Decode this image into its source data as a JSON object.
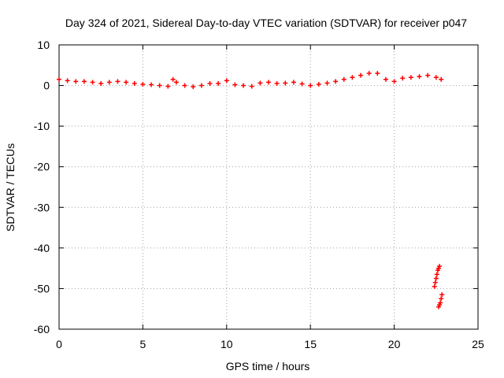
{
  "chart_data": {
    "type": "scatter",
    "title": "Day 324 of 2021, Sidereal Day-to-day VTEC variation (SDTVAR) for receiver p047",
    "xlabel": "GPS time / hours",
    "ylabel": "SDTVAR / TECUs",
    "xlim": [
      0,
      25
    ],
    "ylim": [
      -60,
      10
    ],
    "xticks": [
      "0",
      "5",
      "10",
      "15",
      "20",
      "25"
    ],
    "yticks": [
      "10",
      "0",
      "-10",
      "-20",
      "-30",
      "-40",
      "-50",
      "-60"
    ],
    "grid": true,
    "marker_color": "#ff0000",
    "series": [
      {
        "marker": "plus",
        "x": [
          0.0,
          0.5,
          1.0,
          1.5,
          2.0,
          2.5,
          3.0,
          3.5,
          4.0,
          4.5,
          5.0,
          5.5,
          6.0,
          6.5,
          6.8,
          7.0,
          7.5,
          8.0,
          8.5,
          9.0,
          9.5,
          10.0,
          10.5,
          11.0,
          11.5,
          12.0,
          12.5,
          13.0,
          13.5,
          14.0,
          14.5,
          15.0,
          15.5,
          16.0,
          16.5,
          17.0,
          17.5,
          18.0,
          18.5,
          19.0,
          19.5,
          20.0,
          20.5,
          21.0,
          21.5,
          22.0,
          22.5,
          22.8
        ],
        "y": [
          1.5,
          1.2,
          1.0,
          1.0,
          0.8,
          0.5,
          0.8,
          1.0,
          0.8,
          0.5,
          0.3,
          0.2,
          0.0,
          -0.2,
          1.5,
          0.8,
          0.0,
          -0.3,
          0.0,
          0.5,
          0.5,
          1.2,
          0.2,
          0.0,
          -0.2,
          0.6,
          0.8,
          0.5,
          0.6,
          0.8,
          0.4,
          0.0,
          0.3,
          0.6,
          1.0,
          1.5,
          2.0,
          2.5,
          3.0,
          3.0,
          1.5,
          1.0,
          1.8,
          2.0,
          2.2,
          2.5,
          2.0,
          1.5
        ]
      },
      {
        "marker": "plus",
        "x": [
          22.4,
          22.45,
          22.5,
          22.55,
          22.6,
          22.65,
          22.7
        ],
        "y": [
          -49.5,
          -48.5,
          -47.5,
          -46.5,
          -45.5,
          -45.0,
          -44.5
        ]
      },
      {
        "marker": "plus",
        "x": [
          22.65,
          22.7,
          22.75,
          22.8,
          22.85
        ],
        "y": [
          -54.5,
          -54.0,
          -53.5,
          -52.5,
          -51.5
        ]
      }
    ]
  }
}
